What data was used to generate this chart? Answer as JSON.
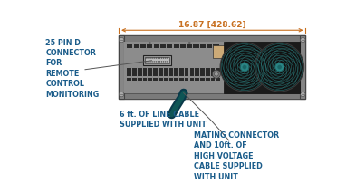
{
  "bg_color": "#ffffff",
  "text_color": "#1a5c8a",
  "dim_color": "#c87020",
  "device_dark": "#555555",
  "dim_label": "16.87 [428.62]",
  "label_25pin": "25 PIN D\nCONNECTOR\nFOR\nREMOTE\nCONTROL\nMONITORING",
  "label_6ft": "6 ft. OF LINE CABLE\nSUPPLIED WITH UNIT",
  "label_mating": "MATING CONNECTOR\nAND 10ft. OF\nHIGH VOLTAGE\nCABLE SUPPLIED\nWITH UNIT",
  "font_size_label": 5.8
}
